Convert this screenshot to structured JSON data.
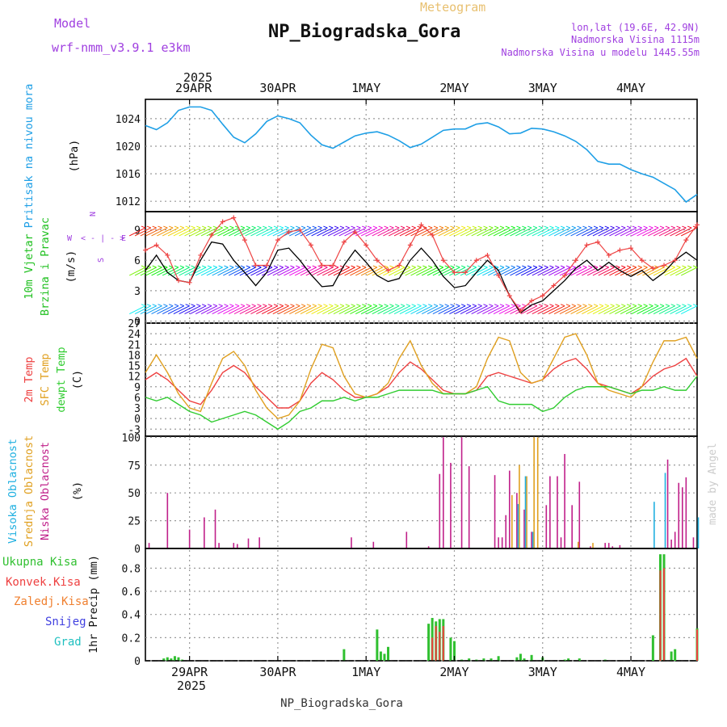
{
  "header": {
    "title": "NP_Biogradska_Gora",
    "subtitle": "Meteogram",
    "model_label": "Model",
    "model_name": "wrf-nmm_v3.9.1 e3km",
    "location": "lon,lat (19.6E, 42.9N)",
    "elevation": "Nadmorska Visina 1115m",
    "model_elevation": "Nadmorska Visina u modelu 1445.55m",
    "footer": "NP_Biogradska_Gora",
    "credit": "made by Angel",
    "year": "2025"
  },
  "colors": {
    "pressure": "#1e9fe6",
    "wind_speed": "#000000",
    "gust": "#ee4444",
    "temp2m": "#ee4040",
    "sfc_temp": "#e0a020",
    "dewpt": "#30cc30",
    "high_cloud": "#20b0e0",
    "mid_cloud": "#e0a020",
    "low_cloud": "#c0208a",
    "total_precip": "#30c030",
    "conv_precip": "#ee4040",
    "frozen_precip": "#f08030",
    "snow": "#4040e0",
    "hail": "#20c0c0",
    "wind_label": "#20c020",
    "compass": "#a040e0"
  },
  "chart_data": [
    {
      "id": "pressure",
      "type": "line",
      "ylabel_rot": [
        "Pritisak na nivou mora",
        "(hPa)"
      ],
      "yticks": [
        1012,
        1016,
        1020,
        1024
      ],
      "ylim": [
        1010.5,
        1026.8
      ],
      "x_unit": "hours since 28 Apr 2025 12:00",
      "x": [
        0,
        3,
        6,
        9,
        12,
        15,
        18,
        21,
        24,
        27,
        30,
        33,
        36,
        39,
        42,
        45,
        48,
        51,
        54,
        57,
        60,
        63,
        66,
        69,
        72,
        75,
        78,
        81,
        84,
        87,
        90,
        93,
        96,
        99,
        102,
        105,
        108,
        111,
        114,
        117,
        120,
        123,
        126,
        129,
        132,
        135,
        138,
        141,
        144,
        147,
        150
      ],
      "values": [
        1023.0,
        1022.4,
        1023.4,
        1025.2,
        1025.7,
        1025.7,
        1025.2,
        1023.2,
        1021.3,
        1020.5,
        1021.8,
        1023.6,
        1024.4,
        1024.0,
        1023.4,
        1021.6,
        1020.2,
        1019.7,
        1020.6,
        1021.5,
        1021.9,
        1022.1,
        1021.6,
        1020.8,
        1019.8,
        1020.3,
        1021.3,
        1022.3,
        1022.5,
        1022.5,
        1023.2,
        1023.4,
        1022.8,
        1021.8,
        1021.9,
        1022.6,
        1022.5,
        1022.1,
        1021.5,
        1020.7,
        1019.5,
        1017.8,
        1017.4,
        1017.4,
        1016.6,
        1016.0,
        1015.5,
        1014.6,
        1013.7,
        1011.9,
        1013.0
      ],
      "series_name": "Pritisak na nivou mora"
    },
    {
      "id": "wind",
      "type": "line",
      "ylabel_rot": [
        "10m Vjetar",
        "Brzina i Pravac",
        "(m/s)"
      ],
      "compass": {
        "n": "N",
        "s": "S",
        "w": "W",
        "e": "E",
        "sep": "< - | - >"
      },
      "yticks": [
        0,
        3,
        6,
        9
      ],
      "ylim": [
        -0.2,
        10.8
      ],
      "x": [
        0,
        3,
        6,
        9,
        12,
        15,
        18,
        21,
        24,
        27,
        30,
        33,
        36,
        39,
        42,
        45,
        48,
        51,
        54,
        57,
        60,
        63,
        66,
        69,
        72,
        75,
        78,
        81,
        84,
        87,
        90,
        93,
        96,
        99,
        102,
        105,
        108,
        111,
        114,
        117,
        120,
        123,
        126,
        129,
        132,
        135,
        138,
        141,
        144,
        147,
        150
      ],
      "series": [
        {
          "name": "wind_speed",
          "values": [
            5.0,
            6.5,
            4.8,
            4.0,
            3.8,
            6.0,
            7.8,
            7.6,
            6.0,
            4.8,
            3.5,
            4.8,
            7.0,
            7.2,
            6.0,
            4.6,
            3.4,
            3.5,
            5.5,
            7.0,
            5.8,
            4.5,
            3.9,
            4.2,
            6.0,
            7.2,
            6.0,
            4.4,
            3.3,
            3.5,
            4.8,
            6.0,
            5.0,
            2.5,
            0.8,
            1.6,
            2.0,
            3.0,
            4.0,
            5.2,
            6.0,
            5.0,
            5.8,
            5.0,
            4.4,
            5.0,
            4.0,
            4.8,
            6.0,
            6.8,
            6.0
          ]
        },
        {
          "name": "gust",
          "values": [
            7.0,
            7.5,
            6.5,
            4.0,
            3.8,
            6.5,
            8.5,
            9.8,
            10.2,
            8.0,
            5.5,
            5.5,
            8.0,
            8.8,
            9.0,
            7.5,
            5.5,
            5.5,
            7.8,
            8.8,
            7.5,
            6.0,
            5.0,
            5.5,
            7.5,
            9.5,
            8.5,
            6.0,
            4.8,
            4.8,
            6.0,
            6.5,
            4.5,
            2.5,
            1.0,
            2.0,
            2.5,
            3.5,
            4.5,
            6.0,
            7.5,
            7.8,
            6.5,
            7.0,
            7.2,
            6.0,
            5.2,
            5.5,
            6.0,
            8.0,
            9.5
          ]
        }
      ],
      "barb_rows": [
        {
          "y": 9.2,
          "start": 0,
          "end": 150
        },
        {
          "y": 5.3,
          "start": 0,
          "end": 150
        },
        {
          "y": 1.5,
          "start": 0,
          "end": 150
        }
      ]
    },
    {
      "id": "temperature",
      "type": "line",
      "ylabel_rot": [
        "2m Temp",
        "SFC Temp",
        "dewpt Temp",
        "(C)"
      ],
      "yticks": [
        -3,
        0,
        3,
        6,
        9,
        12,
        15,
        18,
        21,
        24,
        27
      ],
      "ylim": [
        -5,
        27
      ],
      "x": [
        0,
        3,
        6,
        9,
        12,
        15,
        18,
        21,
        24,
        27,
        30,
        33,
        36,
        39,
        42,
        45,
        48,
        51,
        54,
        57,
        60,
        63,
        66,
        69,
        72,
        75,
        78,
        81,
        84,
        87,
        90,
        93,
        96,
        99,
        102,
        105,
        108,
        111,
        114,
        117,
        120,
        123,
        126,
        129,
        132,
        135,
        138,
        141,
        144,
        147,
        150
      ],
      "series": [
        {
          "name": "2m Temp",
          "values": [
            11,
            13,
            11,
            8,
            5,
            4,
            8,
            13,
            15,
            13,
            9,
            6,
            3,
            3,
            5,
            10,
            13,
            11,
            8,
            6,
            6,
            7,
            9,
            13,
            16,
            14,
            11,
            8,
            7,
            7,
            8,
            12,
            13,
            12,
            11,
            10,
            11,
            14,
            16,
            17,
            14,
            10,
            9,
            8,
            7,
            9,
            12,
            14,
            15,
            17,
            12
          ]
        },
        {
          "name": "SFC Temp",
          "values": [
            13,
            18,
            13,
            7,
            3,
            2,
            10,
            17,
            19,
            15,
            8,
            3,
            0,
            1,
            5,
            14,
            21,
            20,
            12,
            7,
            6,
            7,
            10,
            17,
            22,
            15,
            10,
            7,
            7,
            7,
            9,
            17,
            23,
            22,
            13,
            10,
            11,
            17,
            23,
            24,
            18,
            10,
            8,
            7,
            6,
            9,
            16,
            22,
            22,
            23,
            17
          ]
        },
        {
          "name": "dewpt Temp",
          "values": [
            6,
            5,
            6,
            4,
            2,
            1,
            -1,
            0,
            1,
            2,
            1,
            -1,
            -3,
            -1,
            2,
            3,
            5,
            5,
            6,
            5,
            6,
            6,
            7,
            8,
            8,
            8,
            8,
            7,
            7,
            7,
            8,
            9,
            5,
            4,
            4,
            4,
            2,
            3,
            6,
            8,
            9,
            9,
            9,
            8,
            7,
            8,
            8,
            9,
            8,
            8,
            12
          ]
        }
      ]
    },
    {
      "id": "cloud",
      "type": "bar",
      "ylabel_rot": [
        "Visoka Oblacnost",
        "Srednja Oblacnost",
        "Niska Oblacnost",
        "(%)"
      ],
      "yticks": [
        0,
        25,
        50,
        75,
        100
      ],
      "ylim": [
        0,
        101
      ],
      "series": [
        {
          "name": "low",
          "x": [
            1,
            6,
            12,
            16,
            19,
            20,
            24,
            25,
            28,
            31,
            56,
            62,
            71,
            77,
            80,
            81,
            83,
            86,
            88,
            95,
            96,
            97,
            98,
            99,
            101,
            103,
            105,
            109,
            110,
            112,
            113,
            114,
            116,
            118,
            121,
            125,
            126,
            127,
            129,
            142,
            143,
            144,
            145,
            146,
            147,
            149
          ],
          "values": [
            5,
            50,
            17,
            28,
            35,
            5,
            5,
            4,
            9,
            10,
            10,
            6,
            15,
            2,
            67,
            100,
            77,
            100,
            74,
            66,
            10,
            10,
            30,
            70,
            50,
            35,
            15,
            39,
            65,
            65,
            10,
            85,
            39,
            60,
            2,
            5,
            5,
            2,
            3,
            80,
            8,
            15,
            59,
            55,
            64,
            10
          ]
        },
        {
          "name": "mid",
          "x": [
            100,
            102,
            104,
            106,
            107,
            118,
            122
          ],
          "values": [
            48,
            75,
            65,
            100,
            100,
            6,
            5
          ]
        },
        {
          "name": "high",
          "x": [
            101,
            103,
            105,
            138,
            141,
            150
          ],
          "values": [
            40,
            65,
            15,
            42,
            68,
            28
          ]
        }
      ]
    },
    {
      "id": "precip",
      "type": "bar",
      "ylabel_rot": [
        "1hr Precip (mm)"
      ],
      "legend": [
        "Ukupna Kisa",
        "Konvek.Kisa",
        "Zaledj.Kisa",
        "Snijeg",
        "Grad"
      ],
      "yticks": [
        0,
        0.2,
        0.4,
        0.6,
        0.8
      ],
      "ylim": [
        0,
        0.97
      ],
      "series": [
        {
          "name": "total",
          "x": [
            5,
            6,
            7,
            8,
            9,
            10,
            54,
            63,
            64,
            65,
            66,
            77,
            78,
            79,
            80,
            81,
            83,
            84,
            86,
            88,
            90,
            92,
            94,
            96,
            101,
            102,
            103,
            105,
            108,
            114,
            115,
            118,
            125,
            138,
            140,
            141,
            143,
            144,
            150
          ],
          "values": [
            0.02,
            0.03,
            0.02,
            0.04,
            0.03,
            0.01,
            0.1,
            0.27,
            0.08,
            0.06,
            0.12,
            0.32,
            0.37,
            0.34,
            0.36,
            0.36,
            0.2,
            0.17,
            0.01,
            0.02,
            0.01,
            0.02,
            0.02,
            0.04,
            0.03,
            0.06,
            0.02,
            0.05,
            0.03,
            0.01,
            0.02,
            0.02,
            0.01,
            0.22,
            0.92,
            0.92,
            0.08,
            0.1,
            0.28
          ]
        },
        {
          "name": "conv",
          "x": [
            78,
            79,
            80,
            81,
            140,
            141,
            150
          ],
          "values": [
            0.2,
            0.3,
            0.25,
            0.3,
            0.78,
            0.8,
            0.27
          ]
        }
      ]
    }
  ],
  "axis": {
    "day_labels": [
      "29APR",
      "30APR",
      "1MAY",
      "2MAY",
      "3MAY",
      "4MAY"
    ],
    "day_hours": [
      12,
      36,
      60,
      84,
      108,
      132
    ],
    "x_range": [
      0,
      150
    ]
  }
}
